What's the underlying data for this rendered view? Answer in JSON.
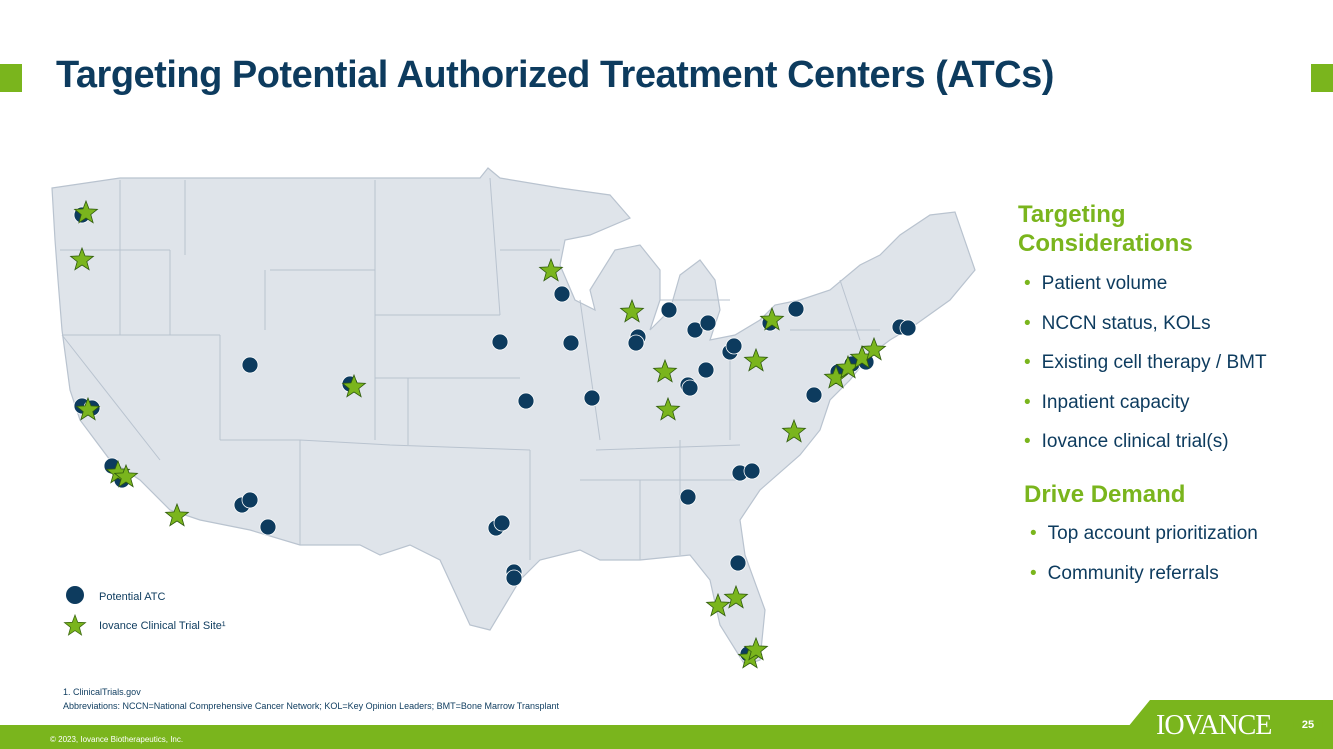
{
  "title": "Targeting Potential Authorized Treatment Centers (ATCs)",
  "sections": [
    {
      "heading": "Targeting Considerations",
      "bullets": [
        "Patient volume",
        "NCCN status, KOLs",
        "Existing cell therapy / BMT",
        "Inpatient capacity",
        "Iovance clinical trial(s)"
      ]
    },
    {
      "heading": "Drive Demand",
      "bullets": [
        "Top account prioritization",
        "Community referrals"
      ]
    }
  ],
  "legend": [
    "Potential ATC",
    "Iovance Clinical Trial Site¹"
  ],
  "footnotes": [
    "1. ClinicalTrials.gov",
    "Abbreviations:  NCCN=National Comprehensive Cancer Network;  KOL=Key Opinion Leaders;  BMT=Bone Marrow Transplant"
  ],
  "copyright": "© 2023, Iovance Biotherapeutics, Inc.",
  "logo": "IOVANCE",
  "page_number": "25"
}
